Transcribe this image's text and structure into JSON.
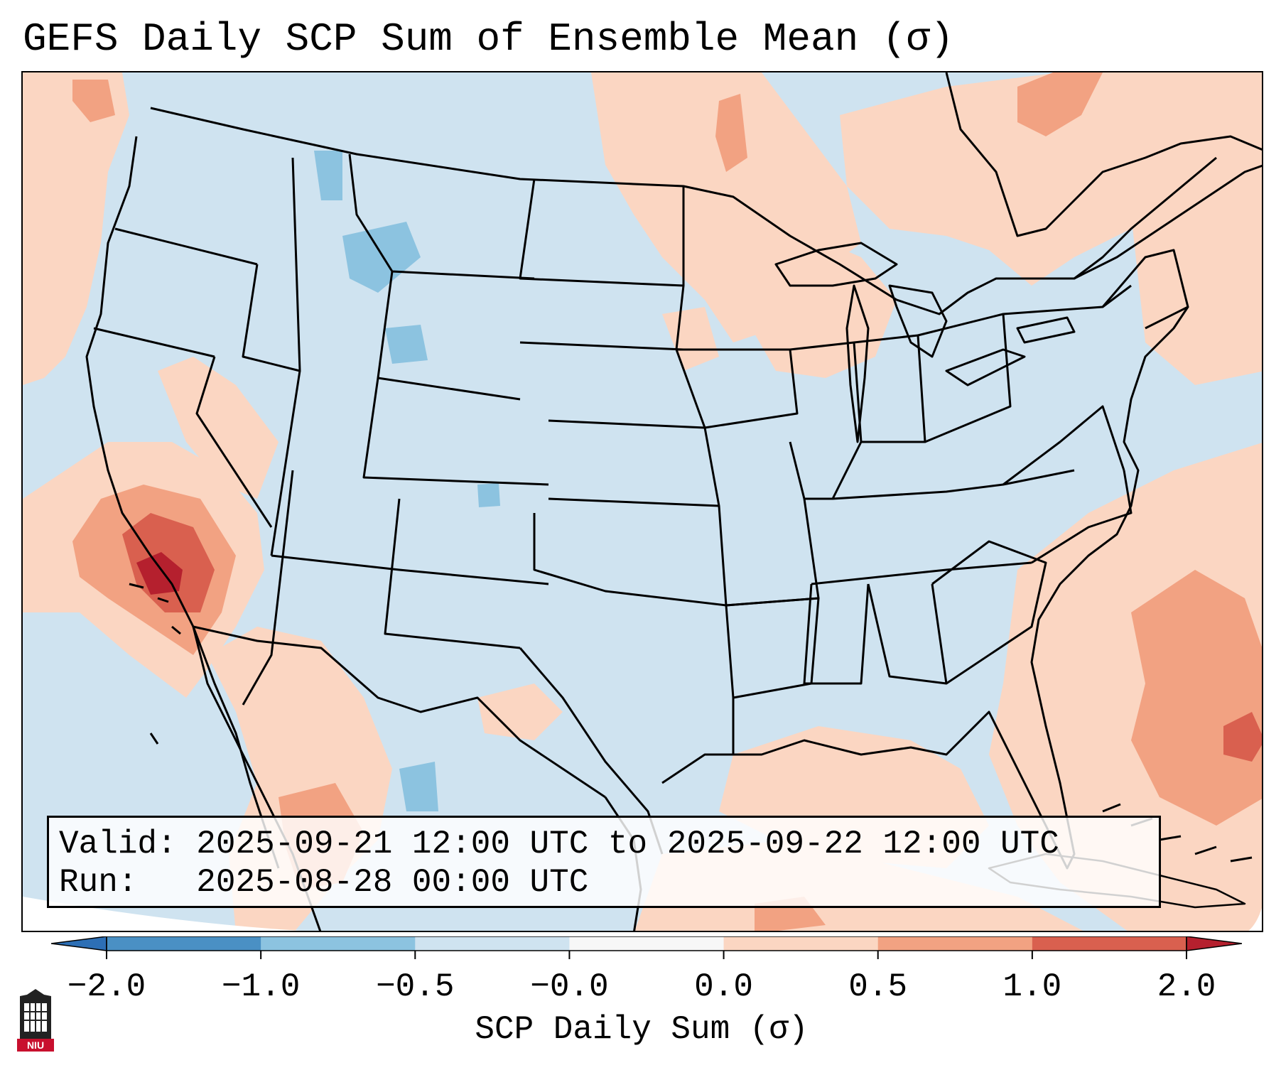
{
  "title": "GEFS Daily SCP Sum of Ensemble Mean (σ)",
  "info": {
    "valid_label": "Valid:",
    "valid_value": "2025-09-21 12:00 UTC to 2025-09-22 12:00 UTC",
    "run_label": "Run:",
    "run_value": "2025-08-28 00:00 UTC"
  },
  "colorbar": {
    "label": "SCP Daily Sum (σ)",
    "ticks": [
      "−2.0",
      "−1.0",
      "−0.5",
      "−0.0",
      "0.0",
      "0.5",
      "1.0",
      "2.0"
    ],
    "bins": [
      {
        "range": "-2.0 to -1.0",
        "color": "#4a90c4"
      },
      {
        "range": "-1.0 to -0.5",
        "color": "#8cc3e0"
      },
      {
        "range": "-0.5 to -0.0",
        "color": "#cfe3f0"
      },
      {
        "range": "-0.0 to 0.0",
        "color": "#f7f7f7"
      },
      {
        "range": "0.0 to 0.5",
        "color": "#fbd6c2"
      },
      {
        "range": "0.5 to 1.0",
        "color": "#f2a282"
      },
      {
        "range": "1.0 to 2.0",
        "color": "#d9604f"
      }
    ],
    "extend_low_color": "#2d6fb5",
    "extend_high_color": "#b5202e"
  },
  "map": {
    "background_color": "#cfe3f0",
    "outside_domain_color": "#ffffff",
    "border_color": "#000000"
  },
  "logo": {
    "text": "NIU",
    "color": "#c8102e"
  }
}
